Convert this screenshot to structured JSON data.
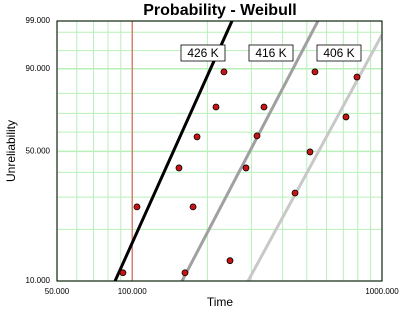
{
  "chart_data": {
    "type": "weibull-probability",
    "title": "Probability - Weibull",
    "x_label": "Time",
    "y_label": "Unreliability",
    "x_scale": "log",
    "y_scale": "weibull",
    "xlim": [
      50,
      1000
    ],
    "ylim": [
      10,
      99
    ],
    "xticks": [
      {
        "value": 50,
        "label": "50.000"
      },
      {
        "value": 100,
        "label": "100.000"
      },
      {
        "value": 1000,
        "label": "1000.000"
      }
    ],
    "yticks": [
      {
        "value": 10,
        "label": "10.000"
      },
      {
        "value": 50,
        "label": "50.000"
      },
      {
        "value": 90,
        "label": "90.000"
      },
      {
        "value": 99,
        "label": "99.000"
      }
    ],
    "xgrid": [
      60,
      70,
      80,
      90,
      200,
      300,
      400,
      500,
      600,
      700,
      800,
      900
    ],
    "ygrid": [
      20,
      30,
      40,
      60,
      70,
      80,
      95,
      98
    ],
    "grid_color": "#b8f0b8",
    "reference_x": 100,
    "reference_color": "#e05050",
    "point_color": "#c81414",
    "series": [
      {
        "name": "426 K",
        "color": "#000000",
        "x": [
          91.8,
          104.5,
          153.9,
          181.8,
          216.5,
          233
        ],
        "values": [
          11.2,
          26.6,
          42.0,
          57.5,
          73.3,
          88.9
        ],
        "fit_x": [
          85.4,
          250.9
        ],
        "fit_y": [
          10,
          99
        ]
      },
      {
        "name": "416 K",
        "color": "#a0a0a0",
        "x": [
          162.7,
          175.2,
          246.3,
          285.5,
          315.9,
          337
        ],
        "values": [
          11.2,
          26.6,
          13.2,
          42.0,
          58.0,
          73.3
        ],
        "fit_x": [
          158.3,
          554
        ],
        "fit_y": [
          10,
          99
        ]
      },
      {
        "name": "406 K",
        "color": "#c8c8c8",
        "x": [
          448.6,
          515,
          539,
          717.5,
          794
        ],
        "values": [
          31.5,
          49.7,
          88.9,
          68.1,
          87.0
        ],
        "fit_x": [
          290.9,
          1000
        ],
        "fit_y": [
          10,
          97.7
        ]
      }
    ]
  }
}
